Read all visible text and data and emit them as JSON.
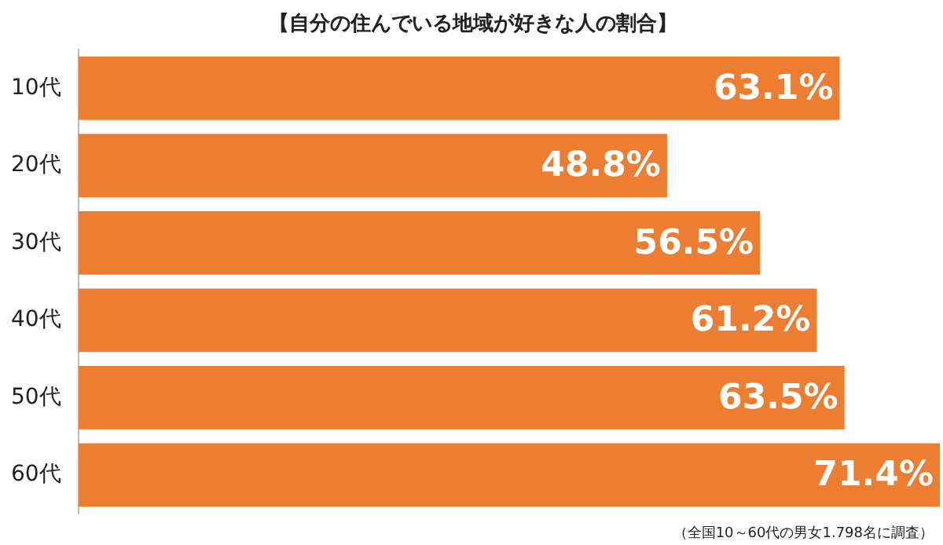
{
  "chart_data": {
    "type": "bar",
    "orientation": "horizontal",
    "title": "【自分の住んでいる地域が好きな人の割合】",
    "categories": [
      "10代",
      "20代",
      "30代",
      "40代",
      "50代",
      "60代"
    ],
    "values": [
      63.1,
      48.8,
      56.5,
      61.2,
      63.5,
      71.4
    ],
    "color": "#ed7d31",
    "data_labels": true,
    "value_labels": [
      "63.1%",
      "48.8%",
      "56.5%",
      "61.2%",
      "63.5%",
      "71.4%"
    ],
    "annotations": [
      "（全国10～60代の男女1.798名に調査）"
    ]
  }
}
